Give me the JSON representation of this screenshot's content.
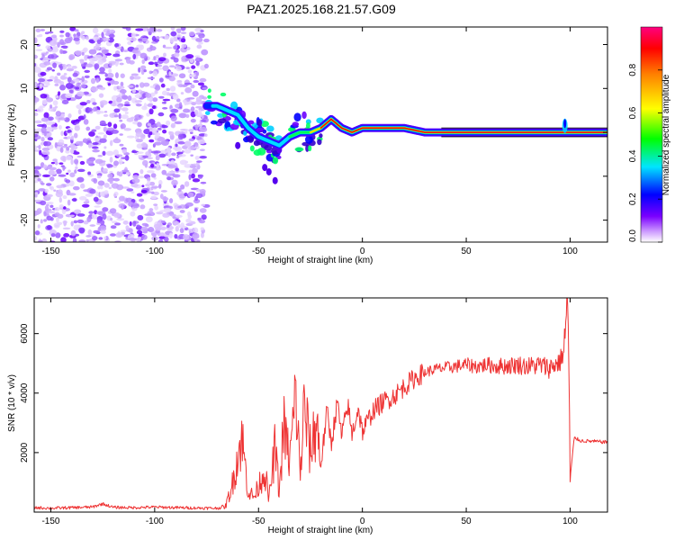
{
  "title": "PAZ1.2025.168.21.57.G09",
  "chart_data": [
    {
      "type": "heatmap",
      "xlabel": "Height of straight line (km)",
      "ylabel": "Frequency (Hz)",
      "xlim": [
        -158,
        118
      ],
      "ylim": [
        -25,
        24
      ],
      "xticks": [
        -150,
        -100,
        -50,
        0,
        50,
        100
      ],
      "yticks": [
        -20,
        -10,
        0,
        10,
        20
      ],
      "colorbar": {
        "label": "Normalized spectral amplitude",
        "range": [
          0,
          1
        ],
        "ticks": [
          "0.0",
          "0.2",
          "0.4",
          "0.6",
          "0.8"
        ],
        "colors": [
          "#ffffff",
          "#cc99ff",
          "#7a00ff",
          "#0000ff",
          "#00e5ff",
          "#00ff00",
          "#ffff00",
          "#ff8000",
          "#ff0000",
          "#ff0080"
        ]
      },
      "noise_region_km": [
        -158,
        -75
      ],
      "ridge_line": {
        "x": [
          -75,
          -70,
          -65,
          -60,
          -55,
          -50,
          -45,
          -40,
          -35,
          -30,
          -25,
          -20,
          -15,
          -10,
          -5,
          0,
          10,
          20,
          30,
          40,
          60,
          80,
          95,
          100,
          118
        ],
        "y": [
          6,
          6,
          5,
          4,
          1,
          -1,
          -2,
          -3,
          -1,
          0,
          0,
          1,
          3,
          1,
          0,
          1,
          1,
          1,
          0,
          0,
          0,
          0,
          0,
          0,
          0
        ]
      }
    },
    {
      "type": "line",
      "xlabel": "Height of straight line (km)",
      "ylabel": "SNR (10 * v/v)",
      "xlim": [
        -158,
        118
      ],
      "ylim": [
        0,
        7200
      ],
      "xticks": [
        -150,
        -100,
        -50,
        0,
        50,
        100
      ],
      "yticks": [
        2000,
        4000,
        6000
      ],
      "color": "#ee3333",
      "series": [
        {
          "x": [
            -158,
            -150,
            -140,
            -130,
            -125,
            -120,
            -110,
            -100,
            -90,
            -80,
            -70,
            -66,
            -63,
            -60,
            -58,
            -55,
            -52,
            -50,
            -47,
            -45,
            -42,
            -40,
            -38,
            -35,
            -32,
            -30,
            -28,
            -25,
            -22,
            -20,
            -17,
            -15,
            -12,
            -10,
            -7,
            -5,
            -2,
            0,
            5,
            10,
            15,
            20,
            25,
            30,
            35,
            40,
            45,
            50,
            55,
            60,
            65,
            70,
            75,
            80,
            85,
            90,
            95,
            97,
            98,
            99,
            100,
            102,
            105,
            110,
            118
          ],
          "y": [
            150,
            130,
            150,
            170,
            280,
            160,
            150,
            170,
            150,
            140,
            130,
            180,
            800,
            1900,
            2500,
            700,
            500,
            900,
            1400,
            400,
            2200,
            600,
            2900,
            1700,
            4000,
            1200,
            3500,
            2000,
            3100,
            1600,
            3400,
            2300,
            3700,
            2500,
            3600,
            2600,
            3500,
            2700,
            3400,
            3700,
            3900,
            4200,
            4500,
            4700,
            4800,
            4850,
            4900,
            4950,
            4900,
            4950,
            4900,
            4920,
            4950,
            4900,
            4950,
            4850,
            5050,
            5400,
            6400,
            7200,
            1100,
            2500,
            2400,
            2380,
            2350
          ]
        }
      ]
    }
  ]
}
